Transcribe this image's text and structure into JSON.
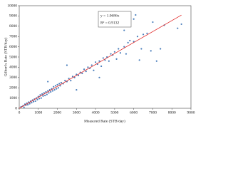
{
  "chart_data": {
    "type": "scatter",
    "xlabel": "Measured Rate (STB/day)",
    "ylabel": "Gilbert's Rate (STB/day)",
    "xlim": [
      0,
      9000
    ],
    "ylim": [
      0,
      10000
    ],
    "xticks": [
      0,
      1000,
      2000,
      3000,
      4000,
      5000,
      6000,
      7000,
      8000,
      9000
    ],
    "yticks": [
      0,
      1000,
      2000,
      3000,
      4000,
      5000,
      6000,
      7000,
      8000,
      9000,
      10000
    ],
    "series": [
      {
        "color": "#4a7ebb",
        "x": [
          100,
          200,
          250,
          300,
          350,
          400,
          450,
          500,
          550,
          600,
          650,
          700,
          750,
          800,
          850,
          900,
          950,
          1000,
          1050,
          1100,
          1150,
          1200,
          1250,
          1300,
          1350,
          1400,
          1450,
          1500,
          1550,
          1600,
          1650,
          1700,
          1750,
          1800,
          1850,
          1900,
          1950,
          2000,
          2050,
          2100,
          2150,
          2200,
          2300,
          2400,
          2500,
          2600,
          2700,
          2800,
          2900,
          3000,
          3100,
          3200,
          3300,
          3400,
          3500,
          3600,
          3700,
          3800,
          3900,
          4000,
          4100,
          4200,
          4300,
          4400,
          4500,
          4600,
          4700,
          4800,
          4900,
          5000,
          5100,
          5200,
          5300,
          5500,
          5600,
          5700,
          5800,
          6000,
          6100,
          6200,
          6400,
          6500,
          6700,
          6900,
          7000,
          7200,
          7400,
          7600,
          8300,
          8500,
          2500,
          3000,
          1500,
          4200,
          5500,
          6000,
          6300
        ],
        "values": [
          150,
          250,
          100,
          400,
          300,
          500,
          350,
          600,
          450,
          700,
          550,
          800,
          650,
          900,
          700,
          1000,
          850,
          1150,
          950,
          1300,
          1000,
          1400,
          1200,
          1500,
          1250,
          1600,
          1350,
          1700,
          1500,
          1800,
          1600,
          1900,
          1700,
          2100,
          1800,
          2200,
          1900,
          2300,
          2000,
          2400,
          2200,
          2500,
          2400,
          2700,
          2600,
          2900,
          2700,
          3100,
          3000,
          3300,
          3200,
          3500,
          3400,
          3800,
          3600,
          4000,
          3900,
          4200,
          3700,
          4500,
          4300,
          4600,
          4100,
          4900,
          4700,
          5000,
          4600,
          5300,
          5200,
          5500,
          4800,
          5800,
          5400,
          6000,
          5300,
          6400,
          6600,
          6500,
          9100,
          7000,
          5800,
          7200,
          7300,
          5600,
          8400,
          4600,
          5800,
          8100,
          7800,
          8200,
          4200,
          1800,
          2600,
          3000,
          7600,
          8700,
          4700
        ]
      }
    ],
    "trendline": {
      "color": "#e02020",
      "x": [
        0,
        8500
      ],
      "values": [
        0,
        9083
      ],
      "equation": "y = 1.0686x",
      "r2": "R² = 0.9132"
    }
  }
}
